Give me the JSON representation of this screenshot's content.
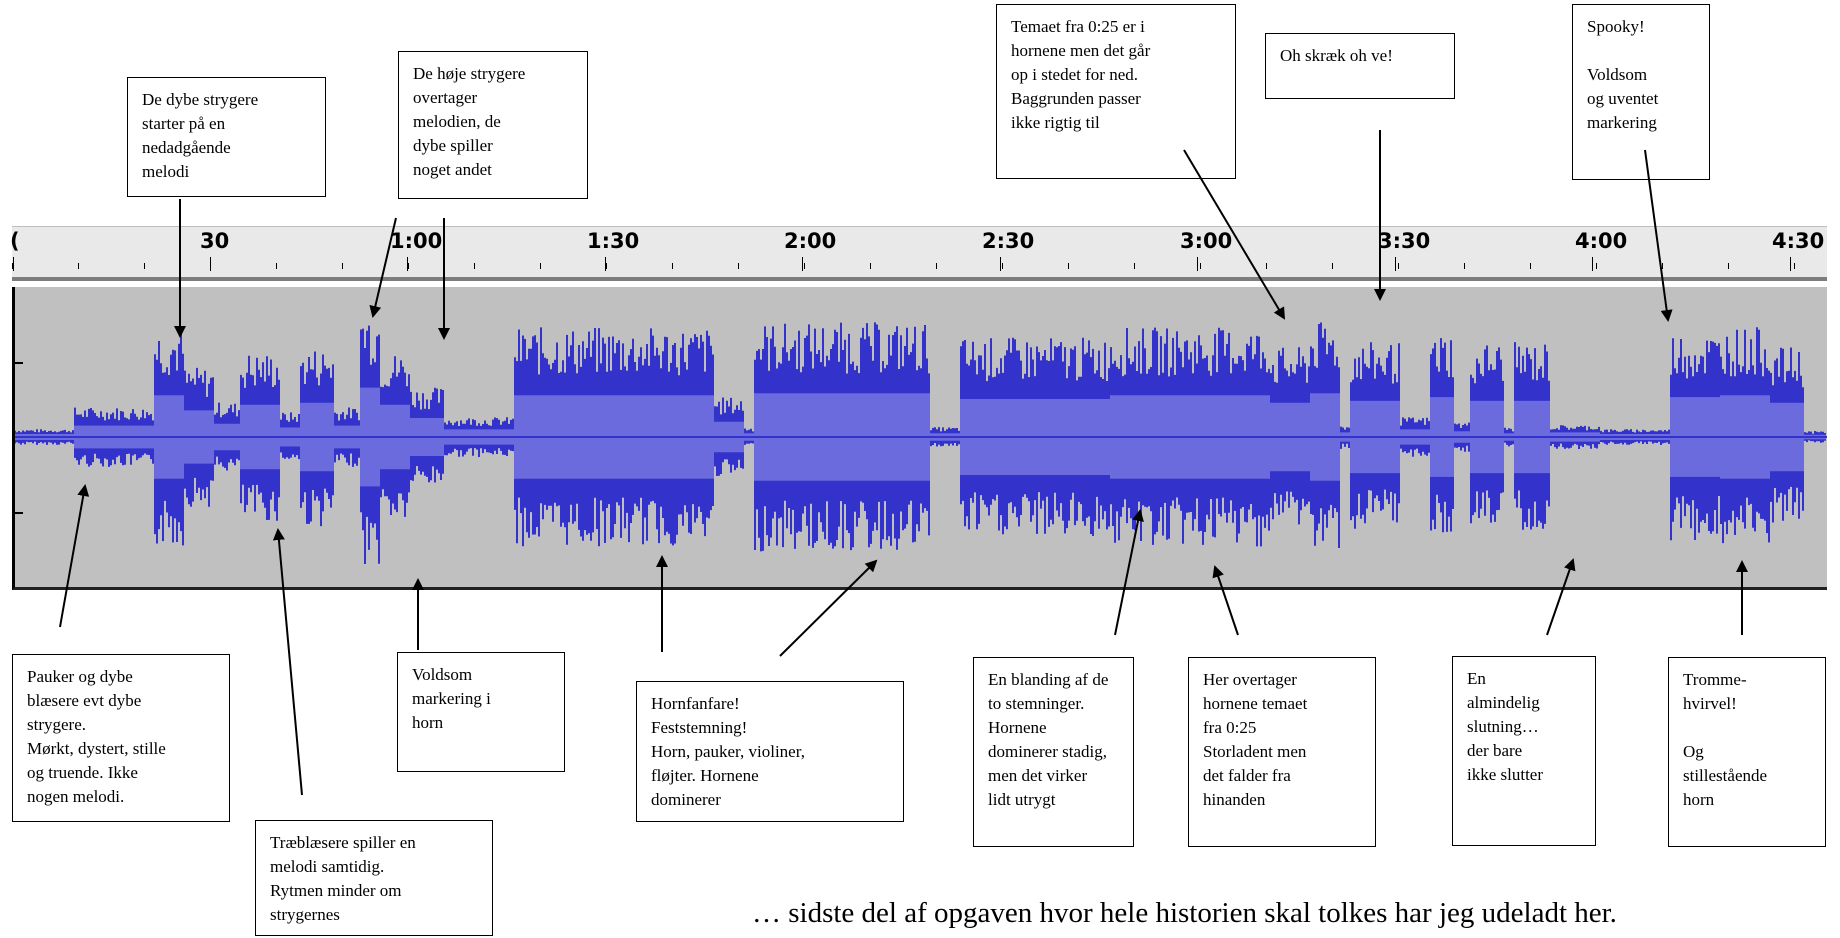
{
  "timeline": {
    "labels": [
      "(",
      "30",
      "1:00",
      "1:30",
      "2:00",
      "2:30",
      "3:00",
      "3:30",
      "4:00",
      "4:30"
    ]
  },
  "waveform": {
    "color": "#3333cc",
    "rms_color": "#6b6bde",
    "background": "#c0c0c0"
  },
  "annotations": [
    {
      "id": "note-deep-strings",
      "text": "De dybe strygere\nstarter på en\nnedadgående\nmelodi"
    },
    {
      "id": "note-high-strings",
      "text": "De høje strygere\novertager\nmelodien, de\ndybe spiller\nnoget andet"
    },
    {
      "id": "note-theme-horns",
      "text": "Temaet fra 0:25 er i\nhornene men det går\nop i stedet for ned.\nBaggrunden passer\nikke rigtig til"
    },
    {
      "id": "note-oh-horror",
      "text": "Oh skræk oh ve!"
    },
    {
      "id": "note-spooky",
      "text": "Spooky!\n\nVoldsom\nog uventet\nmarkering"
    },
    {
      "id": "note-timpani",
      "text": "Pauker og dybe\nblæsere evt dybe\nstrygere.\nMørkt, dystert, stille\nog truende. Ikke\nnogen melodi."
    },
    {
      "id": "note-woodwinds",
      "text": "Træblæsere spiller en\nmelodi samtidig.\nRytmen minder om\nstrygernes"
    },
    {
      "id": "note-violent-horn",
      "text": "Voldsom\nmarkering i\nhorn"
    },
    {
      "id": "note-fanfare",
      "text": "Hornfanfare!\nFeststemning!\nHorn, pauker, violiner,\nfløjter. Hornene\ndominerer"
    },
    {
      "id": "note-mix",
      "text": "En blanding af de\nto stemninger.\nHornene\ndominerer stadig,\nmen det virker\nlidt utrygt"
    },
    {
      "id": "note-horns-take-over",
      "text": "Her overtager\nhornene temaet\nfra 0:25\nStorladent men\ndet falder fra\nhinanden"
    },
    {
      "id": "note-ending",
      "text": "En\nalmindelig\nslutning…\nder bare\nikke slutter"
    },
    {
      "id": "note-drumroll",
      "text": "Tromme-\nhvirvel!\n\nOg\nstillestående\nhorn"
    }
  ],
  "footer": {
    "text": "… sidste del af opgaven hvor hele historien skal tolkes har jeg udeladt her."
  }
}
